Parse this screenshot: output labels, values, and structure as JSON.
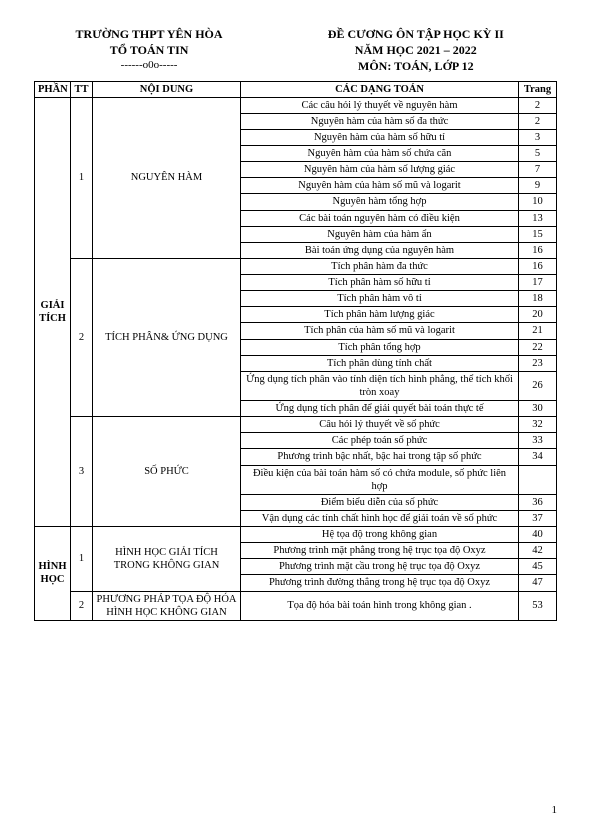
{
  "header": {
    "left1": "TRƯỜNG THPT YÊN HÒA",
    "left2": "TỔ TOÁN TIN",
    "leftSep": "------o0o-----",
    "right1": "ĐỀ CƯƠNG ÔN TẬP HỌC KỲ II",
    "right2": "NĂM HỌC 2021 – 2022",
    "right3": "MÔN: TOÁN, LỚP 12"
  },
  "columns": {
    "phan": "PHẦN",
    "tt": "TT",
    "noidung": "NỘI DUNG",
    "dang": "CÁC DẠNG TOÁN",
    "trang": "Trang"
  },
  "sections": [
    {
      "phan": "GIẢI TÍCH",
      "chapters": [
        {
          "tt": "1",
          "title": "NGUYÊN HÀM",
          "rows": [
            {
              "d": "Các câu hỏi lý thuyết về nguyên hàm",
              "p": "2"
            },
            {
              "d": "Nguyên hàm của hàm số đa thức",
              "p": "2"
            },
            {
              "d": "Nguyên hàm của hàm số hữu tỉ",
              "p": "3"
            },
            {
              "d": "Nguyên hàm của hàm số chứa căn",
              "p": "5"
            },
            {
              "d": "Nguyên hàm của hàm số lượng giác",
              "p": "7"
            },
            {
              "d": "Nguyên hàm của hàm số mũ và logarit",
              "p": "9"
            },
            {
              "d": "Nguyên hàm tổng hợp",
              "p": "10"
            },
            {
              "d": "Các bài toán nguyên hàm có điều kiện",
              "p": "13"
            },
            {
              "d": "Nguyên hàm của hàm ẩn",
              "p": "15"
            },
            {
              "d": "Bài toán ứng dụng của nguyên hàm",
              "p": "16"
            }
          ]
        },
        {
          "tt": "2",
          "title": "TÍCH PHÂN& ỨNG DỤNG",
          "rows": [
            {
              "d": "Tích phân hàm đa thức",
              "p": "16"
            },
            {
              "d": "Tích phân hàm số hữu tỉ",
              "p": "17"
            },
            {
              "d": "Tích phân hàm vô tỉ",
              "p": "18"
            },
            {
              "d": "Tích phân hàm lượng giác",
              "p": "20"
            },
            {
              "d": "Tích phân của hàm số mũ và logarit",
              "p": "21"
            },
            {
              "d": "Tích phân tổng hợp",
              "p": "22"
            },
            {
              "d": "Tích phân dùng tính chất",
              "p": "23"
            },
            {
              "d": "Ứng dụng tích phân vào tính diện tích hình phẳng, thể tích khối tròn xoay",
              "p": "26"
            },
            {
              "d": "Ứng dụng tích phân để giải quyết bài toán thực tế",
              "p": "30"
            }
          ]
        },
        {
          "tt": "3",
          "title": "SỐ PHỨC",
          "rows": [
            {
              "d": "Câu hỏi lý thuyết về số phức",
              "p": "32"
            },
            {
              "d": "Các phép toán số phức",
              "p": "33"
            },
            {
              "d": "Phương trình bậc nhất, bậc hai trong tập số phức",
              "p": "34"
            },
            {
              "d": "Điều kiện của bài toán hàm số có chứa module, số phức liên hợp",
              "p": ""
            },
            {
              "d": "Điểm biểu diễn của số phức",
              "p": "36"
            },
            {
              "d": "Vận dụng các tính chất hình học để giải toán về số phức",
              "p": "37"
            }
          ]
        }
      ]
    },
    {
      "phan": "HÌNH HỌC",
      "chapters": [
        {
          "tt": "1",
          "title": "HÌNH HỌC GIẢI TÍCH TRONG KHÔNG GIAN",
          "rows": [
            {
              "d": "Hệ tọa độ trong không gian",
              "p": "40"
            },
            {
              "d": "Phương trình mặt phẳng trong hệ trục tọa độ Oxyz",
              "p": "42"
            },
            {
              "d": "Phương trình mặt cầu trong hệ trục tọa độ Oxyz",
              "p": "45"
            },
            {
              "d": "Phương trình đường thẳng trong hệ trục tọa độ Oxyz",
              "p": "47"
            }
          ]
        },
        {
          "tt": "2",
          "title": "PHƯƠNG PHÁP TỌA ĐỘ HÓA HÌNH HỌC KHÔNG GIAN",
          "rows": [
            {
              "d": "Tọa độ hóa bài toán hình trong không gian .",
              "p": "53"
            }
          ]
        }
      ]
    }
  ],
  "pageNumber": "1"
}
